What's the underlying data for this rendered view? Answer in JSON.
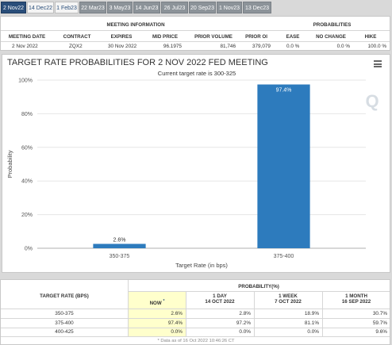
{
  "tabs": [
    {
      "label": "2 Nov22",
      "state": "active"
    },
    {
      "label": "14 Dec22",
      "state": "light"
    },
    {
      "label": "1 Feb23",
      "state": "light"
    },
    {
      "label": "22 Mar23",
      "state": "normal"
    },
    {
      "label": "3 May23",
      "state": "normal"
    },
    {
      "label": "14 Jun23",
      "state": "normal"
    },
    {
      "label": "26 Jul23",
      "state": "normal"
    },
    {
      "label": "20 Sep23",
      "state": "normal"
    },
    {
      "label": "1 Nov23",
      "state": "normal"
    },
    {
      "label": "13 Dec23",
      "state": "normal"
    }
  ],
  "meeting_info": {
    "section_title": "MEETING INFORMATION",
    "probabilities_title": "PROBABILITIES",
    "headers": {
      "meeting_date": "MEETING DATE",
      "contract": "CONTRACT",
      "expires": "EXPIRES",
      "mid_price": "MID PRICE",
      "prior_volume": "PRIOR VOLUME",
      "prior_oi": "PRIOR OI",
      "ease": "EASE",
      "no_change": "NO CHANGE",
      "hike": "HIKE"
    },
    "row": {
      "meeting_date": "2 Nov 2022",
      "contract": "ZQX2",
      "expires": "30 Nov 2022",
      "mid_price": "96.1975",
      "prior_volume": "81,746",
      "prior_oi": "379,079",
      "ease": "0.0 %",
      "no_change": "0.0 %",
      "hike": "100.0 %"
    }
  },
  "chart_data": {
    "type": "bar",
    "title": "TARGET RATE PROBABILITIES FOR 2 NOV 2022 FED MEETING",
    "subtitle": "Current target rate is 300-325",
    "xlabel": "Target Rate (in bps)",
    "ylabel": "Probability",
    "categories": [
      "350-375",
      "375-400"
    ],
    "values": [
      2.6,
      97.4
    ],
    "data_labels": [
      "2.6%",
      "97.4%"
    ],
    "ylim": [
      0,
      100
    ],
    "yticks": [
      "0%",
      "20%",
      "40%",
      "60%",
      "80%",
      "100%"
    ],
    "bar_color": "#2d7bbd",
    "grid": true,
    "watermark": "Q"
  },
  "prob_table": {
    "headers": {
      "target_rate": "TARGET RATE (BPS)",
      "probability": "PROBABILITY(%)",
      "now": "NOW",
      "now_mark": "*",
      "day1": "1 DAY",
      "day1_date": "14 OCT 2022",
      "week1": "1 WEEK",
      "week1_date": "7 OCT 2022",
      "month1": "1 MONTH",
      "month1_date": "16 SEP 2022"
    },
    "rows": [
      {
        "rate": "350-375",
        "now": "2.6%",
        "day1": "2.8%",
        "week1": "18.9%",
        "month1": "30.7%"
      },
      {
        "rate": "375-400",
        "now": "97.4%",
        "day1": "97.2%",
        "week1": "81.1%",
        "month1": "59.7%"
      },
      {
        "rate": "400-425",
        "now": "0.0%",
        "day1": "0.0%",
        "week1": "0.0%",
        "month1": "9.6%"
      }
    ],
    "footnote": "* Data as of 16 Oct 2022 10:46:26 CT"
  }
}
